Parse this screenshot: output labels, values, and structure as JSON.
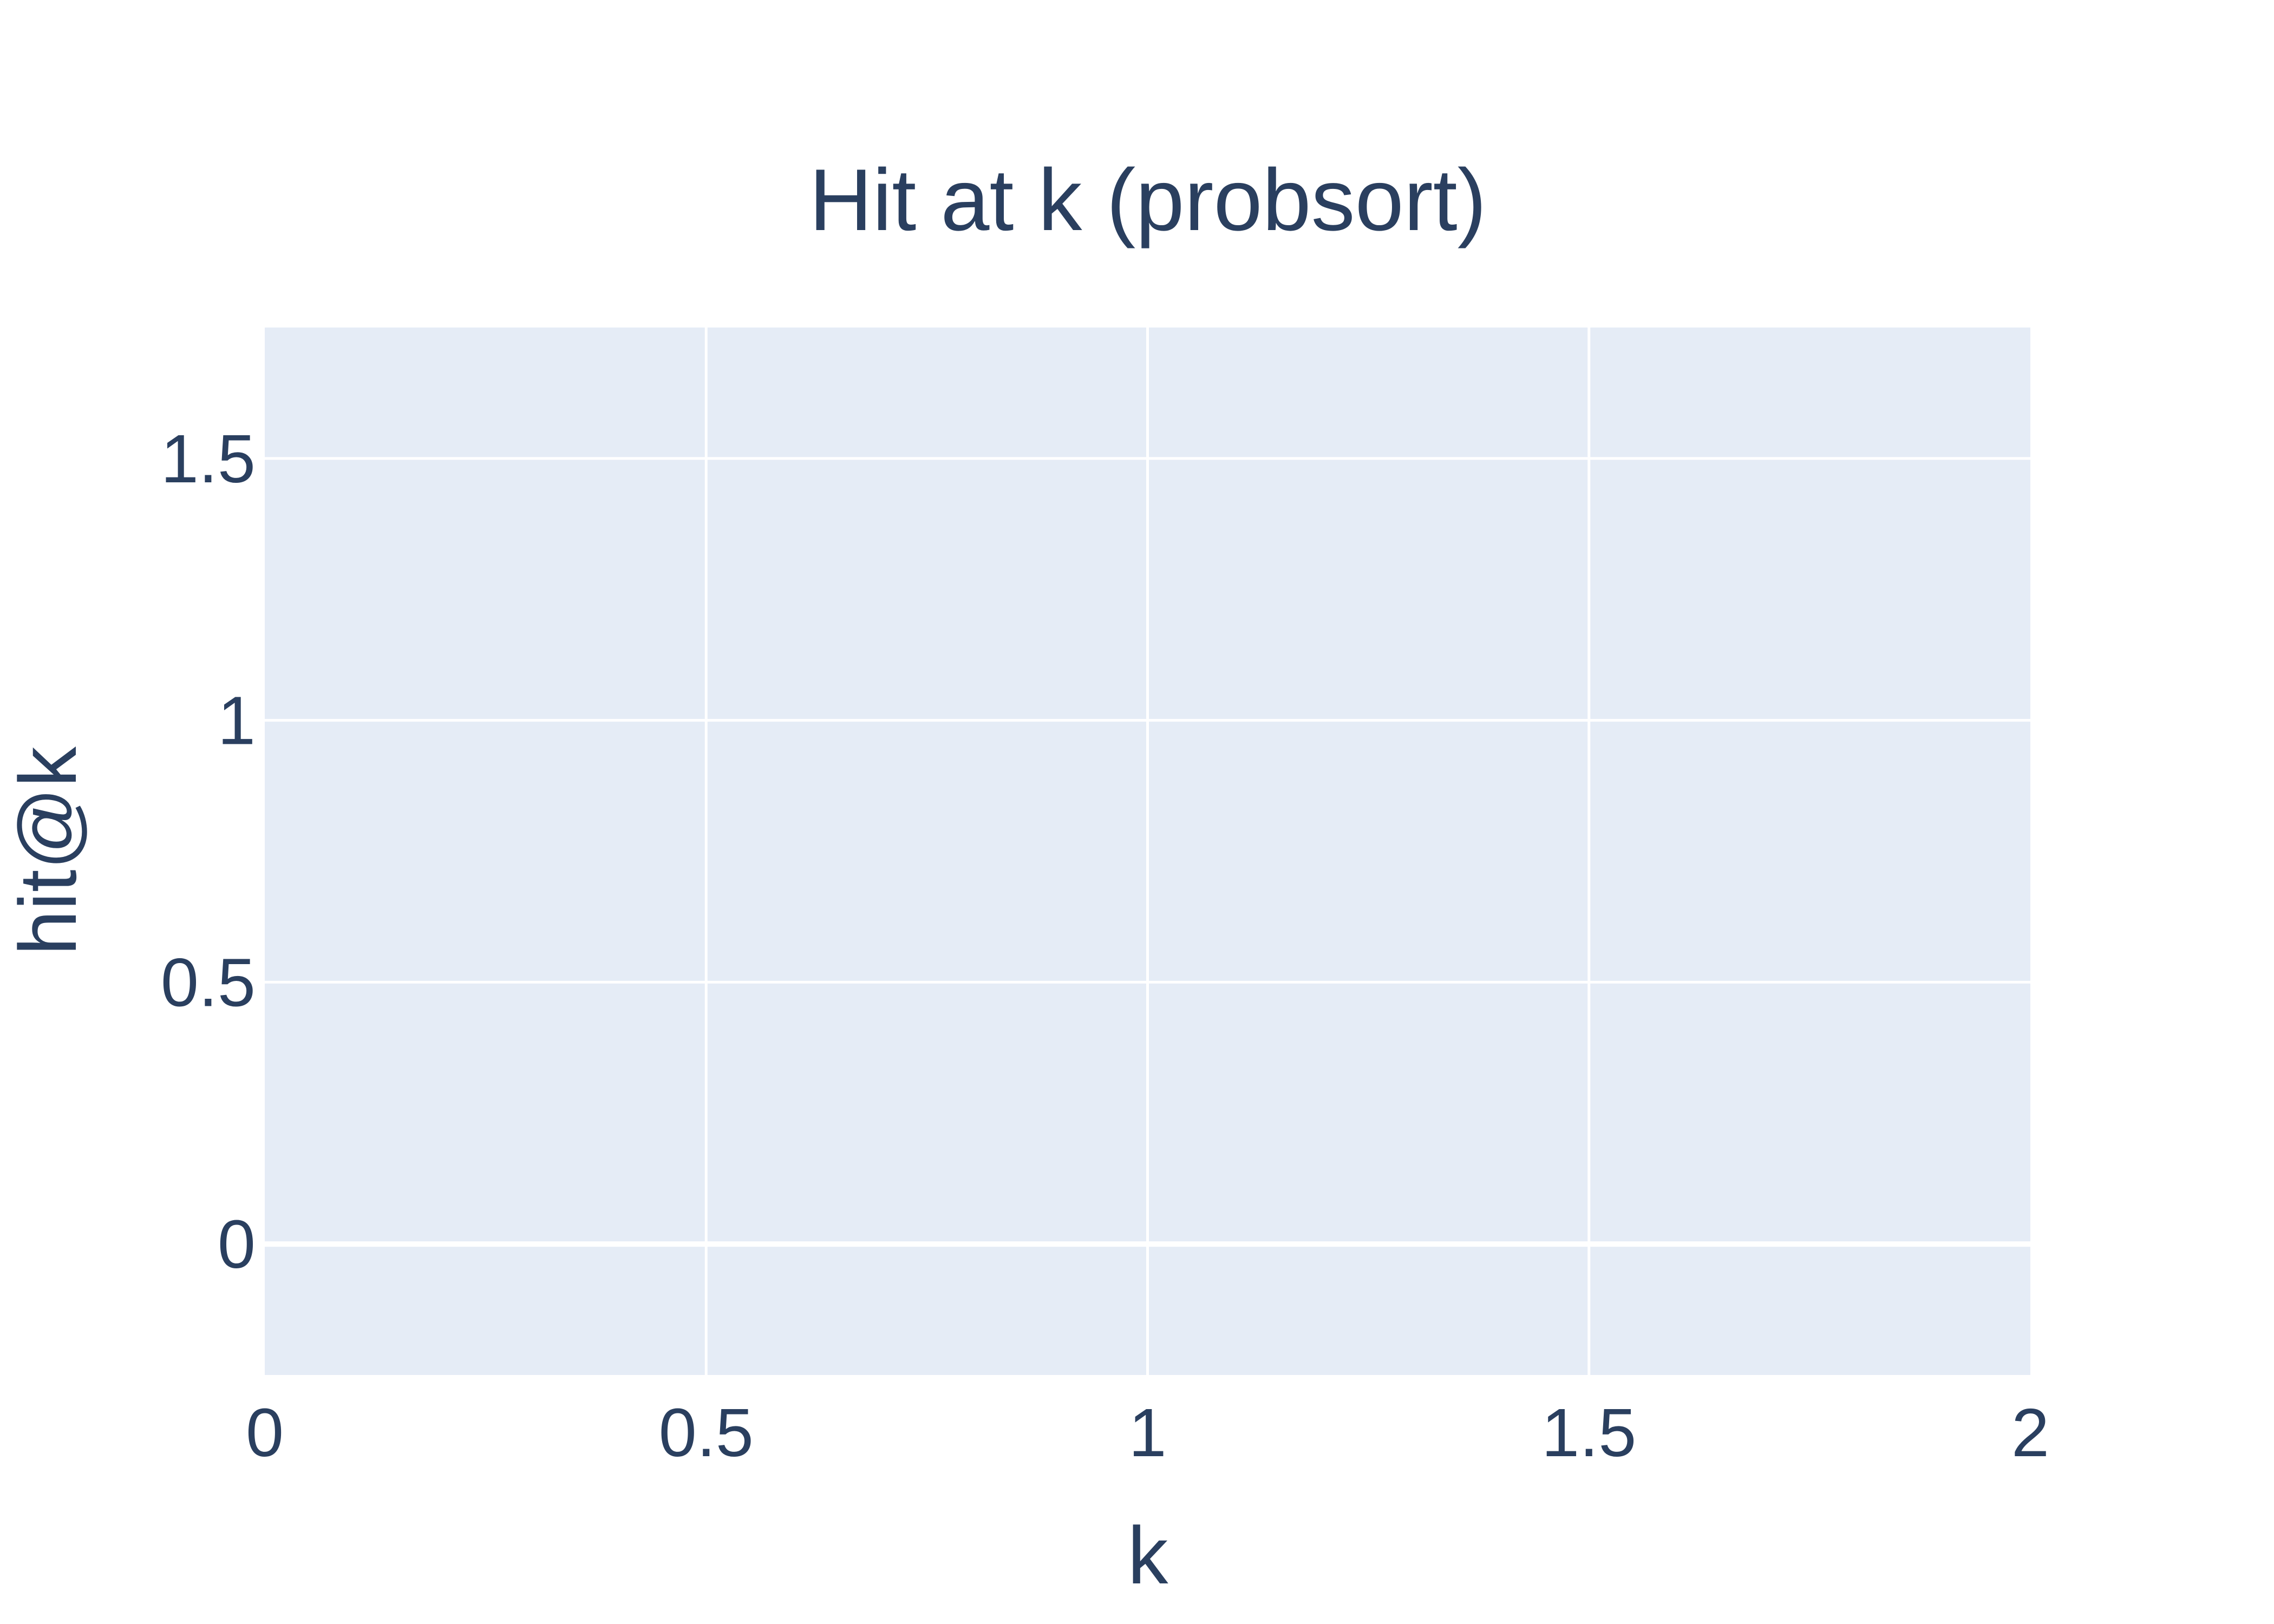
{
  "chart_data": {
    "type": "line",
    "title": "Hit at k (probsort)",
    "xlabel": "k",
    "ylabel": "hit@k",
    "xlim": [
      0,
      2
    ],
    "ylim": [
      -0.25,
      1.75
    ],
    "x_ticks": [
      "0",
      "0.5",
      "1",
      "1.5",
      "2"
    ],
    "y_ticks": [
      "0",
      "0.5",
      "1",
      "1.5"
    ],
    "series": [],
    "grid": true,
    "legend": "none",
    "colors": {
      "plot_background": "#e5ecf6",
      "grid": "#ffffff",
      "text": "#2a3f5f"
    }
  }
}
